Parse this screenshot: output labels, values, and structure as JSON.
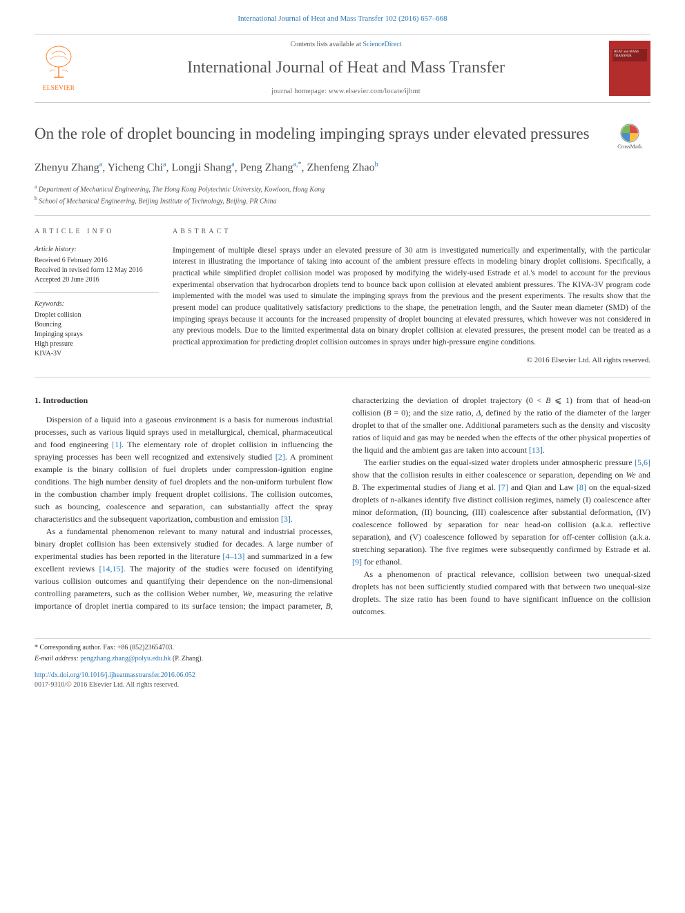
{
  "header_citation": "International Journal of Heat and Mass Transfer 102 (2016) 657–668",
  "masthead": {
    "contents_prefix": "Contents lists available at ",
    "contents_link": "ScienceDirect",
    "journal_name": "International Journal of Heat and Mass Transfer",
    "homepage_prefix": "journal homepage: ",
    "homepage_url": "www.elsevier.com/locate/ijhmt",
    "publisher_logo_text": "ELSEVIER",
    "cover_text": "HEAT and MASS TRANSFER"
  },
  "title": "On the role of droplet bouncing in modeling impinging sprays under elevated pressures",
  "crossmark_label": "CrossMark",
  "authors_html": "Zhenyu Zhang|a|, Yicheng Chi|a|, Longji Shang|a|, Peng Zhang|a,*|, Zhenfeng Zhao|b",
  "affiliations": [
    {
      "sup": "a",
      "text": "Department of Mechanical Engineering, The Hong Kong Polytechnic University, Kowloon, Hong Kong"
    },
    {
      "sup": "b",
      "text": "School of Mechanical Engineering, Beijing Institute of Technology, Beijing, PR China"
    }
  ],
  "info": {
    "section_label": "ARTICLE INFO",
    "history_label": "Article history:",
    "history": [
      "Received 6 February 2016",
      "Received in revised form 12 May 2016",
      "Accepted 20 June 2016"
    ],
    "keywords_label": "Keywords:",
    "keywords": [
      "Droplet collision",
      "Bouncing",
      "Impinging sprays",
      "High pressure",
      "KIVA-3V"
    ]
  },
  "abstract": {
    "section_label": "ABSTRACT",
    "text": "Impingement of multiple diesel sprays under an elevated pressure of 30 atm is investigated numerically and experimentally, with the particular interest in illustrating the importance of taking into account of the ambient pressure effects in modeling binary droplet collisions. Specifically, a practical while simplified droplet collision model was proposed by modifying the widely-used Estrade et al.'s model to account for the previous experimental observation that hydrocarbon droplets tend to bounce back upon collision at elevated ambient pressures. The KIVA-3V program code implemented with the model was used to simulate the impinging sprays from the previous and the present experiments. The results show that the present model can produce qualitatively satisfactory predictions to the shape, the penetration length, and the Sauter mean diameter (SMD) of the impinging sprays because it accounts for the increased propensity of droplet bouncing at elevated pressures, which however was not considered in any previous models. Due to the limited experimental data on binary droplet collision at elevated pressures, the present model can be treated as a practical approximation for predicting droplet collision outcomes in sprays under high-pressure engine conditions.",
    "copyright": "© 2016 Elsevier Ltd. All rights reserved."
  },
  "body": {
    "section_heading": "1. Introduction",
    "paragraphs": [
      "Dispersion of a liquid into a gaseous environment is a basis for numerous industrial processes, such as various liquid sprays used in metallurgical, chemical, pharmaceutical and food engineering <span class='cite'>[1]</span>. The elementary role of droplet collision in influencing the spraying processes has been well recognized and extensively studied <span class='cite'>[2]</span>. A prominent example is the binary collision of fuel droplets under compression-ignition engine conditions. The high number density of fuel droplets and the non-uniform turbulent flow in the combustion chamber imply frequent droplet collisions. The collision outcomes, such as bouncing, coalescence and separation, can substantially affect the spray characteristics and the subsequent vaporization, combustion and emission <span class='cite'>[3]</span>.",
      "As a fundamental phenomenon relevant to many natural and industrial processes, binary droplet collision has been extensively studied for decades. A large number of experimental studies has been reported in the literature <span class='cite'>[4–13]</span> and summarized in a few excellent reviews <span class='cite'>[14,15]</span>. The majority of the studies were focused on identifying various collision outcomes and quantifying their dependence on the non-dimensional controlling parameters, such as the collision Weber number, <span class='ital'>We</span>, measuring the relative importance of droplet inertia compared to its surface tension; the impact parameter, <span class='ital'>B</span>, characterizing the deviation of droplet trajectory (0 < <span class='ital'>B</span> ⩽ 1) from that of head-on collision (<span class='ital'>B</span> = 0); and the size ratio, <span class='ital'>Δ</span>, defined by the ratio of the diameter of the larger droplet to that of the smaller one. Additional parameters such as the density and viscosity ratios of liquid and gas may be needed when the effects of the other physical properties of the liquid and the ambient gas are taken into account <span class='cite'>[13]</span>.",
      "The earlier studies on the equal-sized water droplets under atmospheric pressure <span class='cite'>[5,6]</span> show that the collision results in either coalescence or separation, depending on <span class='ital'>We</span> and <span class='ital'>B</span>. The experimental studies of Jiang et al. <span class='cite'>[7]</span> and Qian and Law <span class='cite'>[8]</span> on the equal-sized droplets of n-alkanes identify five distinct collision regimes, namely (I) coalescence after minor deformation, (II) bouncing, (III) coalescence after substantial deformation, (IV) coalescence followed by separation for near head-on collision (a.k.a. reflective separation), and (V) coalescence followed by separation for off-center collision (a.k.a. stretching separation). The five regimes were subsequently confirmed by Estrade et al. <span class='cite'>[9]</span> for ethanol.",
      "As a phenomenon of practical relevance, collision between two unequal-sized droplets has not been sufficiently studied compared with that between two unequal-size droplets. The size ratio has been found to have significant influence on the collision outcomes."
    ]
  },
  "footer": {
    "corresponding_prefix": "* Corresponding author. Fax: +86 (852)23654703.",
    "email_label": "E-mail address:",
    "email": "pengzhang.zhang@polyu.edu.hk",
    "email_suffix": "(P. Zhang).",
    "doi_url": "http://dx.doi.org/10.1016/j.ijheatmasstransfer.2016.06.052",
    "issn_line": "0017-9310/© 2016 Elsevier Ltd. All rights reserved."
  },
  "colors": {
    "link": "#2878b8",
    "publisher": "#ff6600",
    "cover_bg": "#b32d2d",
    "text": "#333333",
    "heading": "#4a4a4a",
    "rule": "#cccccc"
  }
}
